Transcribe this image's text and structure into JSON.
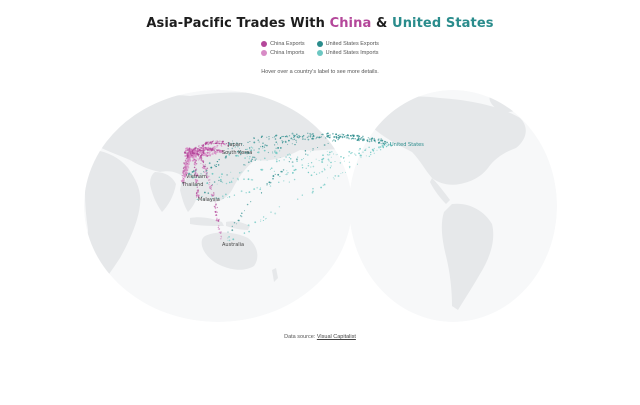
{
  "title": {
    "prefix": "Asia-Pacific Trades With ",
    "china": "China",
    "ampersand": " & ",
    "us": "United States"
  },
  "legend": [
    {
      "label": "China Exports",
      "color": "#b4479a"
    },
    {
      "label": "China Imports",
      "color": "#d88bc6"
    },
    {
      "label": "United States Exports",
      "color": "#2a8c8c"
    },
    {
      "label": "United States Imports",
      "color": "#6cc7c2"
    }
  ],
  "hint": "Hover over a country's label to see more details.",
  "countries": [
    {
      "name": "Japan",
      "kind": "asia"
    },
    {
      "name": "South Korea",
      "kind": "asia"
    },
    {
      "name": "Vietnam",
      "kind": "asia"
    },
    {
      "name": "Thailand",
      "kind": "asia"
    },
    {
      "name": "Malaysia",
      "kind": "asia"
    },
    {
      "name": "Australia",
      "kind": "asia"
    },
    {
      "name": "United States",
      "kind": "us"
    }
  ],
  "source": {
    "prefix": "Data source: ",
    "link": "Visual Capitalist"
  },
  "colors": {
    "land": "#e6e8ea",
    "china_exports": "#b4479a",
    "china_imports": "#d88bc6",
    "us_exports": "#2a8c8c",
    "us_imports": "#6cc7c2"
  }
}
